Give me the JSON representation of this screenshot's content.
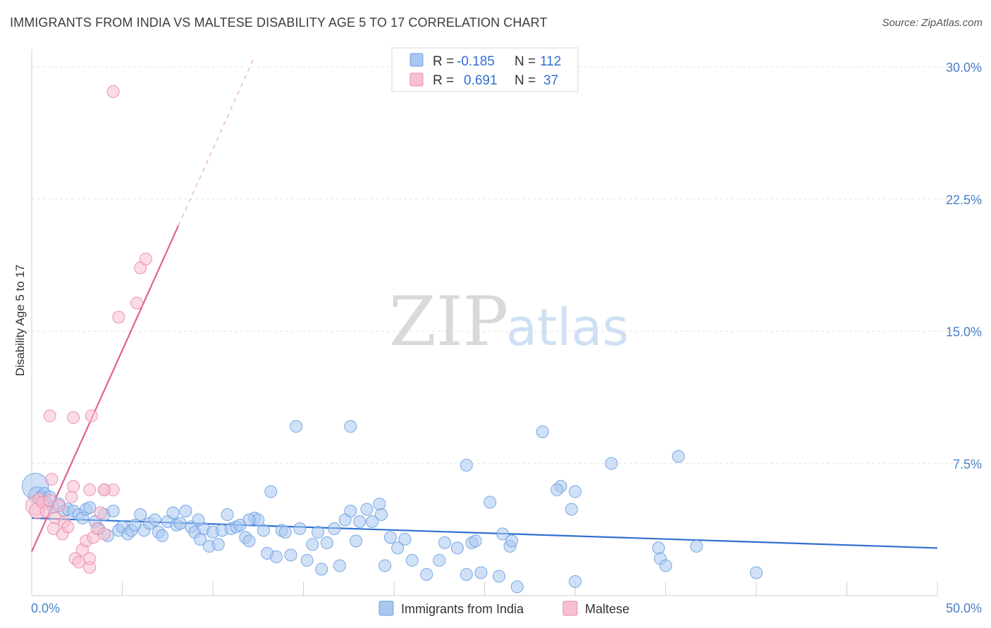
{
  "header": {
    "title": "IMMIGRANTS FROM INDIA VS MALTESE DISABILITY AGE 5 TO 17 CORRELATION CHART",
    "source": "Source: ZipAtlas.com"
  },
  "watermark": {
    "zip": "ZIP",
    "atlas": "atlas"
  },
  "legend_top": {
    "rows": [
      {
        "r_label": "R =",
        "r_value": "-0.185",
        "n_label": "N =",
        "n_value": "112",
        "color": "#a9c8f0",
        "stroke": "#6a9fe0"
      },
      {
        "r_label": "R =",
        "r_value": "0.691",
        "n_label": "N =",
        "n_value": "37",
        "color": "#f7c0d2",
        "stroke": "#e88aa8"
      }
    ]
  },
  "legend_bottom": {
    "items": [
      {
        "label": "Immigrants from India",
        "color": "#a9c8f0",
        "stroke": "#6a9fe0"
      },
      {
        "label": "Maltese",
        "color": "#f7c0d2",
        "stroke": "#e88aa8"
      }
    ]
  },
  "chart_data": {
    "type": "scatter",
    "title": "IMMIGRANTS FROM INDIA VS MALTESE DISABILITY AGE 5 TO 17 CORRELATION CHART",
    "xlabel": "",
    "ylabel": "Disability Age 5 to 17",
    "xlim": [
      0,
      50
    ],
    "ylim": [
      0,
      31
    ],
    "x_tick_labels": [
      "0.0%",
      "50.0%"
    ],
    "y_ticks": [
      7.5,
      15.0,
      22.5,
      30.0
    ],
    "y_tick_labels": [
      "7.5%",
      "15.0%",
      "22.5%",
      "30.0%"
    ],
    "grid": true,
    "legend_placement": "top-center",
    "series": [
      {
        "name": "Immigrants from India",
        "color": "#6a9fe0",
        "fill": "#a9c8f0",
        "trend": {
          "x": [
            0,
            50
          ],
          "y": [
            4.4,
            2.7
          ],
          "color": "#2f6fd0"
        },
        "points": [
          [
            0.2,
            6.2,
            2.2
          ],
          [
            0.3,
            5.7,
            1.4
          ],
          [
            0.5,
            5.6,
            1
          ],
          [
            0.7,
            5.8,
            1
          ],
          [
            0.8,
            5.3,
            1
          ],
          [
            1.0,
            5.6,
            1
          ],
          [
            1.2,
            5.0,
            1
          ],
          [
            1.5,
            5.2,
            1
          ],
          [
            1.8,
            4.8,
            1
          ],
          [
            2.0,
            4.9,
            1
          ],
          [
            2.3,
            4.8,
            1
          ],
          [
            2.6,
            4.6,
            1
          ],
          [
            2.8,
            4.4,
            1
          ],
          [
            3.0,
            4.9,
            1
          ],
          [
            3.2,
            5.0,
            1
          ],
          [
            3.5,
            4.2,
            1
          ],
          [
            3.7,
            3.8,
            1
          ],
          [
            4.0,
            4.6,
            1
          ],
          [
            4.2,
            3.4,
            1
          ],
          [
            4.5,
            4.8,
            1
          ],
          [
            4.8,
            3.7,
            1
          ],
          [
            5.0,
            3.9,
            1
          ],
          [
            5.3,
            3.5,
            1
          ],
          [
            5.5,
            3.7,
            1
          ],
          [
            5.7,
            4.0,
            1
          ],
          [
            6.0,
            4.6,
            1
          ],
          [
            6.2,
            3.7,
            1
          ],
          [
            6.5,
            4.1,
            1
          ],
          [
            6.8,
            4.3,
            1
          ],
          [
            7.0,
            3.6,
            1
          ],
          [
            7.2,
            3.4,
            1
          ],
          [
            7.5,
            4.2,
            1
          ],
          [
            7.8,
            4.7,
            1
          ],
          [
            8.0,
            4.0,
            1
          ],
          [
            8.2,
            4.1,
            1
          ],
          [
            8.5,
            4.8,
            1
          ],
          [
            8.8,
            3.9,
            1
          ],
          [
            9.0,
            3.6,
            1
          ],
          [
            9.3,
            3.2,
            1
          ],
          [
            9.5,
            3.8,
            1
          ],
          [
            9.8,
            2.8,
            1
          ],
          [
            10.0,
            3.6,
            1
          ],
          [
            10.3,
            2.9,
            1
          ],
          [
            10.5,
            3.7,
            1
          ],
          [
            10.8,
            4.6,
            1
          ],
          [
            11.0,
            3.8,
            1
          ],
          [
            11.3,
            3.9,
            1
          ],
          [
            11.5,
            4.0,
            1
          ],
          [
            11.8,
            3.3,
            1
          ],
          [
            12.0,
            3.1,
            1
          ],
          [
            12.3,
            4.4,
            1
          ],
          [
            12.5,
            4.3,
            1
          ],
          [
            12.8,
            3.7,
            1
          ],
          [
            13.0,
            2.4,
            1
          ],
          [
            13.2,
            5.9,
            1
          ],
          [
            13.5,
            2.2,
            1
          ],
          [
            13.8,
            3.7,
            1
          ],
          [
            14.0,
            3.6,
            1
          ],
          [
            14.3,
            2.3,
            1
          ],
          [
            14.6,
            9.6,
            1
          ],
          [
            14.8,
            3.8,
            1
          ],
          [
            15.2,
            2.0,
            1
          ],
          [
            15.5,
            2.9,
            1
          ],
          [
            15.8,
            3.6,
            1
          ],
          [
            16.0,
            1.5,
            1
          ],
          [
            16.3,
            3.0,
            1
          ],
          [
            16.7,
            3.8,
            1
          ],
          [
            17.0,
            1.7,
            1
          ],
          [
            17.3,
            4.3,
            1
          ],
          [
            17.6,
            4.8,
            1
          ],
          [
            17.9,
            3.1,
            1
          ],
          [
            18.1,
            4.2,
            1
          ],
          [
            18.5,
            4.9,
            1
          ],
          [
            18.8,
            4.2,
            1
          ],
          [
            19.2,
            5.2,
            1
          ],
          [
            19.5,
            1.7,
            1
          ],
          [
            19.8,
            3.3,
            1
          ],
          [
            20.2,
            2.7,
            1
          ],
          [
            20.6,
            3.2,
            1
          ],
          [
            21.0,
            2.0,
            1
          ],
          [
            21.8,
            1.2,
            1
          ],
          [
            22.5,
            2.0,
            1
          ],
          [
            22.8,
            3.0,
            1
          ],
          [
            23.5,
            2.7,
            1
          ],
          [
            24.3,
            3.0,
            1
          ],
          [
            24.8,
            1.3,
            1
          ],
          [
            25.8,
            1.1,
            1
          ],
          [
            26.4,
            2.8,
            1
          ],
          [
            24.0,
            1.2,
            1
          ],
          [
            17.6,
            9.6,
            1
          ],
          [
            12.0,
            4.3,
            1
          ],
          [
            9.2,
            4.3,
            1
          ],
          [
            19.3,
            4.6,
            1
          ],
          [
            25.3,
            5.3,
            1
          ],
          [
            26.0,
            3.5,
            1
          ],
          [
            24.0,
            7.4,
            1
          ],
          [
            26.8,
            0.5,
            1
          ],
          [
            28.2,
            9.3,
            1
          ],
          [
            29.2,
            6.2,
            1
          ],
          [
            29.8,
            4.9,
            1
          ],
          [
            30.0,
            5.9,
            1
          ],
          [
            32.0,
            7.5,
            1
          ],
          [
            34.6,
            2.7,
            1
          ],
          [
            34.7,
            2.1,
            1
          ],
          [
            35.0,
            1.7,
            1
          ],
          [
            35.7,
            7.9,
            1
          ],
          [
            36.7,
            2.8,
            1
          ],
          [
            40.0,
            1.3,
            1
          ],
          [
            29.0,
            6.0,
            1
          ],
          [
            30.0,
            0.8,
            1
          ],
          [
            24.5,
            3.1,
            1
          ],
          [
            26.5,
            3.1,
            1
          ]
        ]
      },
      {
        "name": "Maltese",
        "color": "#e88aa8",
        "fill": "#f7c0d2",
        "trend": {
          "x": [
            0,
            8.1
          ],
          "y": [
            2.5,
            21.0
          ],
          "extend_to_y": 30.5,
          "color": "#e0628e"
        },
        "points": [
          [
            0.2,
            5.1,
            1.6
          ],
          [
            0.3,
            4.8,
            1.3
          ],
          [
            0.4,
            5.5,
            1
          ],
          [
            0.6,
            5.3,
            1
          ],
          [
            0.8,
            4.8,
            1
          ],
          [
            1.0,
            5.4,
            1
          ],
          [
            1.1,
            6.6,
            1
          ],
          [
            1.3,
            4.4,
            1
          ],
          [
            1.5,
            5.1,
            1
          ],
          [
            1.7,
            3.5,
            1
          ],
          [
            1.8,
            4.2,
            1
          ],
          [
            2.0,
            3.9,
            1
          ],
          [
            2.2,
            5.6,
            1
          ],
          [
            2.4,
            2.1,
            1
          ],
          [
            2.6,
            1.9,
            1
          ],
          [
            2.8,
            2.6,
            1
          ],
          [
            3.0,
            3.1,
            1
          ],
          [
            3.2,
            1.6,
            1
          ],
          [
            3.4,
            3.3,
            1
          ],
          [
            3.6,
            3.8,
            1
          ],
          [
            3.8,
            4.7,
            1
          ],
          [
            2.3,
            6.2,
            1
          ],
          [
            3.2,
            6.0,
            1
          ],
          [
            4.0,
            6.0,
            1
          ],
          [
            4.5,
            6.0,
            1
          ],
          [
            4.0,
            6.0,
            1
          ],
          [
            1.0,
            10.2,
            1
          ],
          [
            2.3,
            10.1,
            1
          ],
          [
            3.3,
            10.2,
            1
          ],
          [
            4.8,
            15.8,
            1
          ],
          [
            5.8,
            16.6,
            1
          ],
          [
            6.0,
            18.6,
            1
          ],
          [
            6.3,
            19.1,
            1
          ],
          [
            4.5,
            28.6,
            1
          ],
          [
            3.2,
            2.1,
            1
          ],
          [
            4.0,
            3.5,
            1
          ],
          [
            1.2,
            3.8,
            1
          ]
        ]
      }
    ]
  }
}
